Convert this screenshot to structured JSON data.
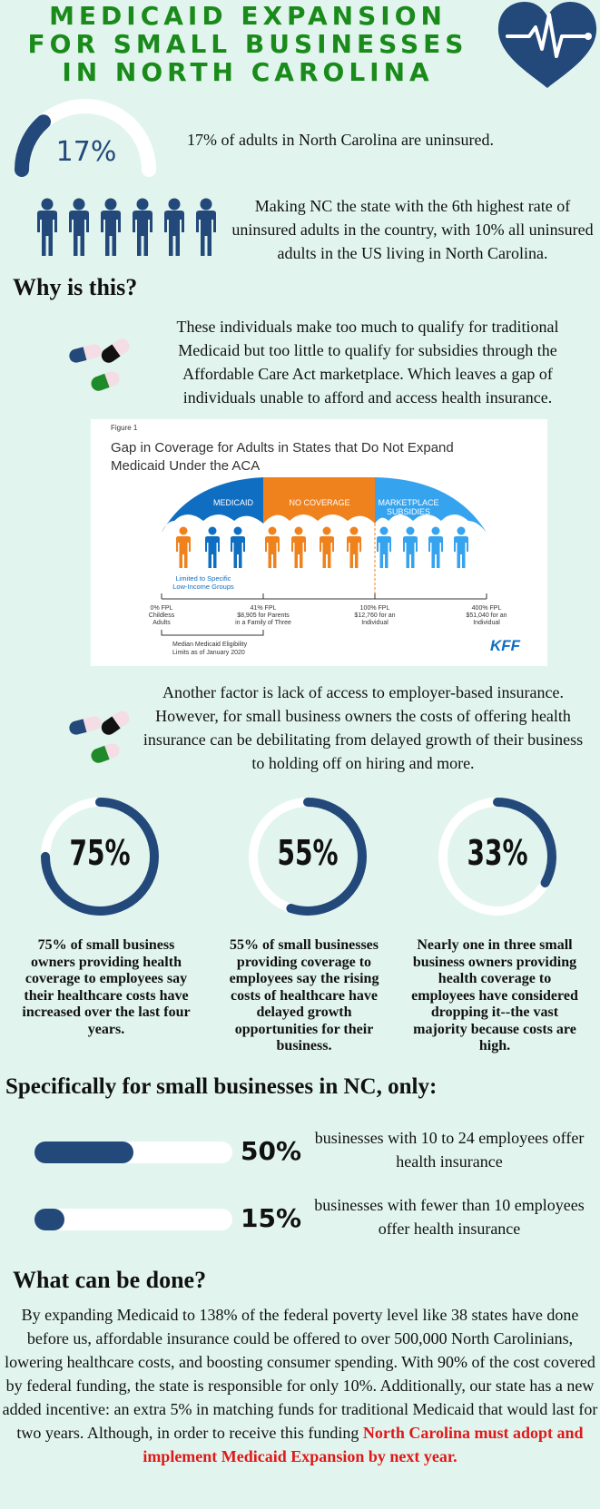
{
  "header": {
    "title_lines": [
      "MEDICAID EXPANSION",
      "FOR SMALL BUSINESSES",
      "IN NORTH CAROLINA"
    ]
  },
  "colors": {
    "title_green": "#1a8a1a",
    "navy": "#23487a",
    "orange": "#f0821e",
    "blue": "#0f6ec1",
    "light_blue": "#36a3ef",
    "red": "#e01818"
  },
  "uninsured": {
    "gauge_label": "17%",
    "gauge_value": 17,
    "statement": "17% of adults in North Carolina are uninsured.",
    "rank_text": "Making NC the state with the 6th highest rate of uninsured adults in the country, with 10% all uninsured adults in the US living in North Carolina."
  },
  "why": {
    "heading": "Why is this?",
    "text": "These individuals make too much to qualify for traditional Medicaid but too little to qualify for subsidies through the Affordable Care Act marketplace. Which leaves a gap of individuals unable to afford and access health insurance."
  },
  "figure": {
    "label": "Figure 1",
    "title_line1": "Gap in Coverage for Adults in States that Do Not Expand",
    "title_line2": "Medicaid Under the ACA",
    "seg_medicaid": "MEDICAID",
    "seg_no_coverage": "NO COVERAGE",
    "seg_marketplace_1": "MARKETPLACE",
    "seg_marketplace_2": "SUBSIDIES",
    "limited_1": "Limited to Specific",
    "limited_2": "Low-Income Groups",
    "tick0": [
      "0% FPL",
      "Childless",
      "Adults"
    ],
    "tick41": [
      "41% FPL",
      "$8,905 for Parents",
      "in a Family of Three"
    ],
    "tick100": [
      "100% FPL",
      "$12,760 for an",
      "Individual"
    ],
    "tick400": [
      "400% FPL",
      "$51,040 for an",
      "Individual"
    ],
    "median_1": "Median Medicaid Eligibility",
    "median_2": "Limits as of January 2020",
    "source_logo": "KFF"
  },
  "employer": {
    "text": "Another factor is lack of access to employer-based insurance. However, for small business owners the costs of offering health insurance can be debilitating from delayed growth of their business to holding off on hiring and more."
  },
  "stats": [
    {
      "label": "75%",
      "value": 75,
      "text": "75% of small business owners providing health coverage to employees say their healthcare costs have increased over the last four years."
    },
    {
      "label": "55%",
      "value": 55,
      "text": "55% of small businesses providing coverage to employees say the rising costs of healthcare have delayed growth opportunities for their business."
    },
    {
      "label": "33%",
      "value": 33,
      "text": "Nearly one in three small business owners providing health coverage to employees have considered dropping it--the vast majority because costs are high."
    }
  ],
  "nc": {
    "heading": "Specifically for small businesses in NC, only:",
    "bars": [
      {
        "label": "50%",
        "value": 50,
        "text": "businesses with 10 to 24 employees offer health insurance"
      },
      {
        "label": "15%",
        "value": 15,
        "text": "businesses with fewer than 10 employees offer health insurance"
      }
    ]
  },
  "action": {
    "heading": "What can be done?",
    "text": "By expanding Medicaid to 138% of the federal poverty level like 38 states have done before us, affordable insurance could be offered to over 500,000 North Carolinians, lowering healthcare costs, and boosting consumer spending. With 90% of the cost covered by federal funding, the state is responsible for only 10%. Additionally, our state has a new added incentive: an extra 5% in matching funds for traditional Medicaid that would last for two years. Although, in order to receive this funding ",
    "highlight": "North Carolina must adopt and implement Medicaid Expansion by next year."
  }
}
